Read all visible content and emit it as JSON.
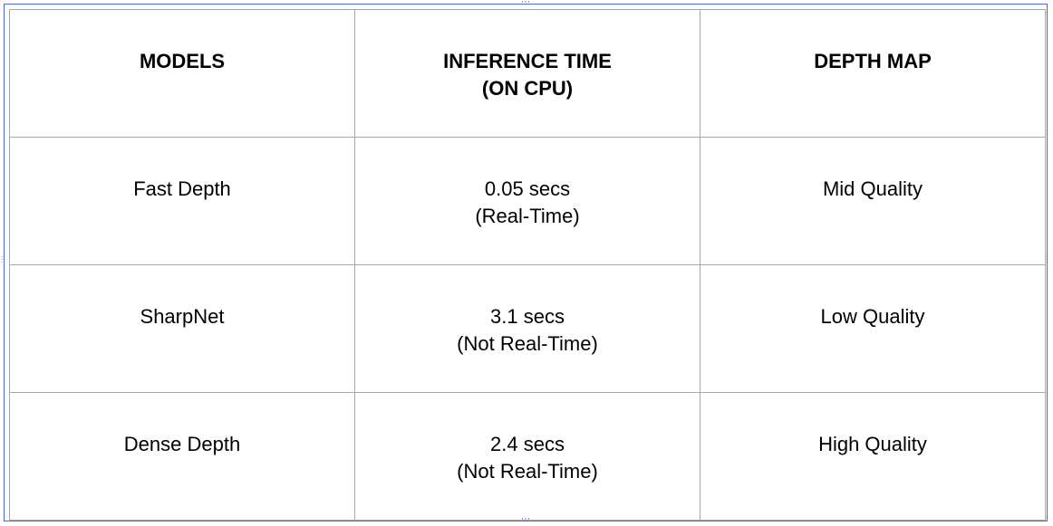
{
  "table": {
    "headers": [
      {
        "lines": [
          "MODELS"
        ]
      },
      {
        "lines": [
          "INFERENCE TIME",
          "(ON CPU)"
        ]
      },
      {
        "lines": [
          "DEPTH MAP"
        ]
      }
    ],
    "rows": [
      [
        {
          "lines": [
            "Fast Depth"
          ]
        },
        {
          "lines": [
            "0.05 secs",
            "(Real-Time)"
          ]
        },
        {
          "lines": [
            "Mid Quality"
          ]
        }
      ],
      [
        {
          "lines": [
            "SharpNet"
          ]
        },
        {
          "lines": [
            "3.1 secs",
            "(Not Real-Time)"
          ]
        },
        {
          "lines": [
            "Low Quality"
          ]
        }
      ],
      [
        {
          "lines": [
            "Dense Depth"
          ]
        },
        {
          "lines": [
            "2.4 secs",
            "(Not Real-Time)"
          ]
        },
        {
          "lines": [
            "High Quality"
          ]
        }
      ]
    ]
  },
  "colors": {
    "selection": "#4a67d6",
    "grid": "#a8a8a8"
  }
}
